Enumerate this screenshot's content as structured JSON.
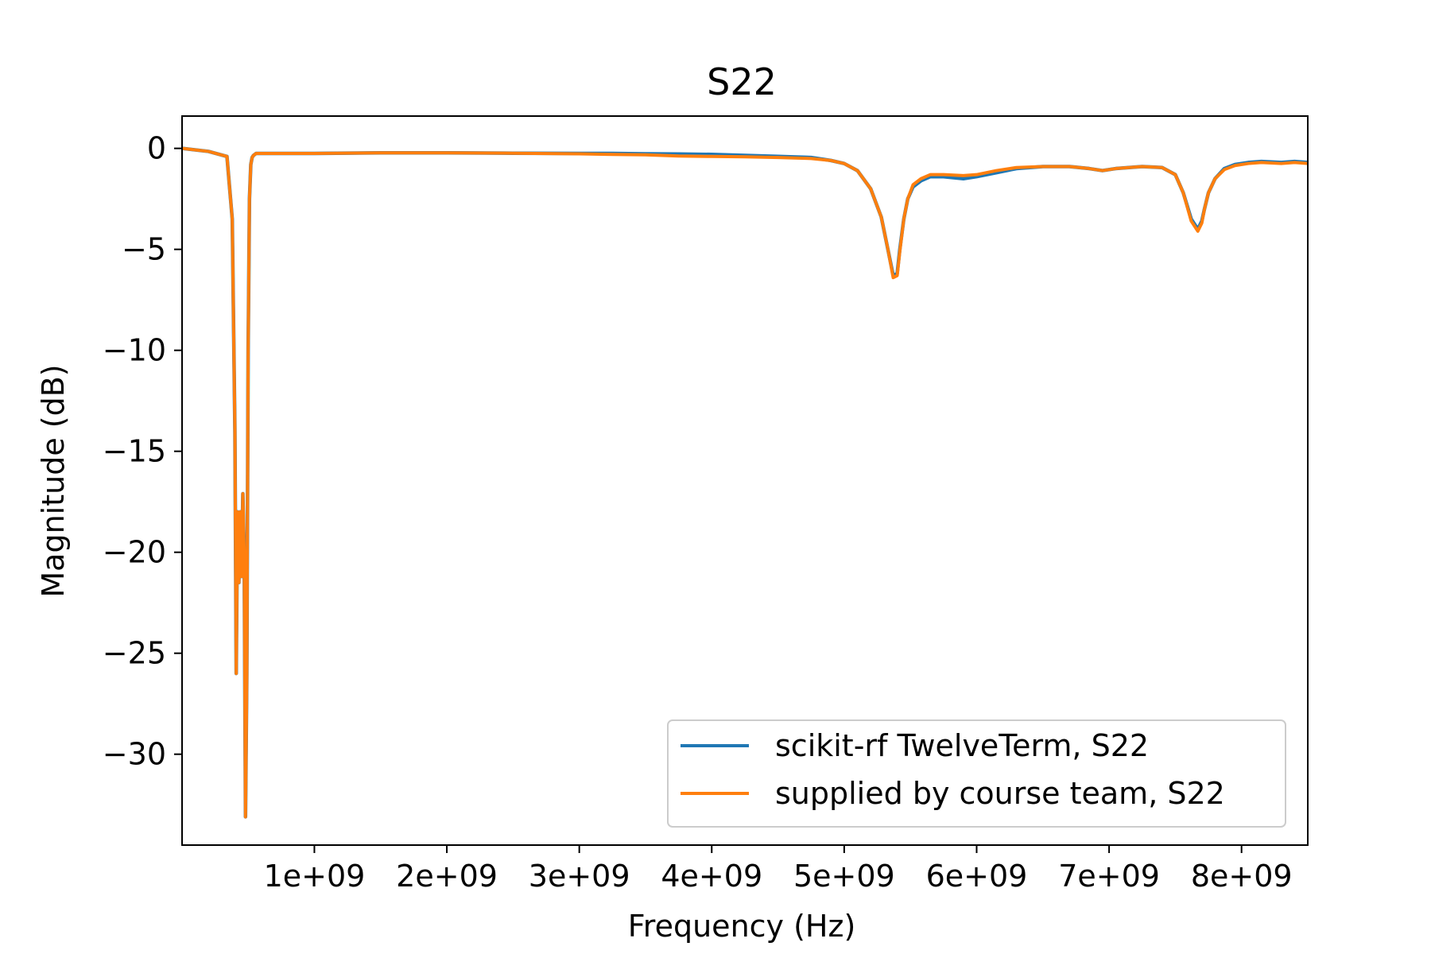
{
  "chart_data": {
    "type": "line",
    "title": "S22",
    "xlabel": "Frequency (Hz)",
    "ylabel": "Magnitude (dB)",
    "xlim": [
      1000000,
      8500000000
    ],
    "ylim": [
      -34.5,
      1.6
    ],
    "x_ticks": [
      {
        "value": 1000000000,
        "label": "1e+09"
      },
      {
        "value": 2000000000,
        "label": "2e+09"
      },
      {
        "value": 3000000000,
        "label": "3e+09"
      },
      {
        "value": 4000000000,
        "label": "4e+09"
      },
      {
        "value": 5000000000,
        "label": "5e+09"
      },
      {
        "value": 6000000000,
        "label": "6e+09"
      },
      {
        "value": 7000000000,
        "label": "7e+09"
      },
      {
        "value": 8000000000,
        "label": "8e+09"
      }
    ],
    "y_ticks": [
      {
        "value": 0,
        "label": "0"
      },
      {
        "value": -5,
        "label": "−5"
      },
      {
        "value": -10,
        "label": "−10"
      },
      {
        "value": -15,
        "label": "−15"
      },
      {
        "value": -20,
        "label": "−20"
      },
      {
        "value": -25,
        "label": "−25"
      },
      {
        "value": -30,
        "label": "−30"
      }
    ],
    "grid": false,
    "legend_position": "lower-right",
    "series": [
      {
        "name": "scikit-rf TwelveTerm, S22",
        "color": "#1f77b4",
        "x": [
          1000000,
          200000000,
          340000000,
          380000000,
          400000000,
          410000000,
          420000000,
          430000000,
          440000000,
          450000000,
          460000000,
          470000000,
          480000000,
          490000000,
          500000000,
          510000000,
          520000000,
          530000000,
          540000000,
          550000000,
          560000000,
          570000000,
          580000000,
          600000000,
          620000000,
          680000000,
          800000000,
          1000000000,
          1500000000,
          2000000000,
          2500000000,
          3000000000,
          3250000000,
          3500000000,
          3750000000,
          4000000000,
          4250000000,
          4500000000,
          4750000000,
          4900000000,
          5000000000,
          5100000000,
          5200000000,
          5280000000,
          5330000000,
          5370000000,
          5400000000,
          5420000000,
          5450000000,
          5480000000,
          5520000000,
          5580000000,
          5650000000,
          5750000000,
          5900000000,
          6000000000,
          6150000000,
          6300000000,
          6500000000,
          6700000000,
          6850000000,
          6950000000,
          7050000000,
          7250000000,
          7400000000,
          7500000000,
          7560000000,
          7620000000,
          7670000000,
          7700000000,
          7720000000,
          7750000000,
          7800000000,
          7870000000,
          7950000000,
          8050000000,
          8150000000,
          8300000000,
          8400000000,
          8500000000
        ],
        "y": [
          0,
          -0.15,
          -0.4,
          -3.5,
          -14,
          -26,
          -18,
          -21.5,
          -18,
          -21.2,
          -17.1,
          -20,
          -33.1,
          -26,
          -10,
          -2.5,
          -0.8,
          -0.45,
          -0.35,
          -0.3,
          -0.25,
          -0.25,
          -0.25,
          -0.25,
          -0.25,
          -0.25,
          -0.25,
          -0.25,
          -0.22,
          -0.22,
          -0.24,
          -0.25,
          -0.25,
          -0.27,
          -0.28,
          -0.3,
          -0.35,
          -0.4,
          -0.45,
          -0.6,
          -0.75,
          -1.1,
          -2.0,
          -3.4,
          -5.0,
          -6.3,
          -6.2,
          -5.0,
          -3.5,
          -2.5,
          -1.9,
          -1.6,
          -1.4,
          -1.4,
          -1.5,
          -1.4,
          -1.2,
          -1.0,
          -0.9,
          -0.9,
          -1.0,
          -1.1,
          -1.0,
          -0.9,
          -0.95,
          -1.3,
          -2.2,
          -3.5,
          -4.0,
          -3.6,
          -3.0,
          -2.2,
          -1.5,
          -1.0,
          -0.8,
          -0.7,
          -0.65,
          -0.7,
          -0.65,
          -0.7
        ]
      },
      {
        "name": "supplied by course team, S22",
        "color": "#ff7f0e",
        "x": [
          1000000,
          200000000,
          340000000,
          380000000,
          400000000,
          410000000,
          420000000,
          430000000,
          440000000,
          450000000,
          460000000,
          470000000,
          480000000,
          490000000,
          500000000,
          510000000,
          520000000,
          530000000,
          540000000,
          550000000,
          560000000,
          570000000,
          580000000,
          600000000,
          620000000,
          680000000,
          800000000,
          1000000000,
          1500000000,
          2000000000,
          2500000000,
          3000000000,
          3250000000,
          3500000000,
          3750000000,
          4000000000,
          4250000000,
          4500000000,
          4750000000,
          4900000000,
          5000000000,
          5100000000,
          5200000000,
          5280000000,
          5330000000,
          5370000000,
          5400000000,
          5420000000,
          5450000000,
          5480000000,
          5520000000,
          5580000000,
          5650000000,
          5750000000,
          5900000000,
          6000000000,
          6150000000,
          6300000000,
          6500000000,
          6700000000,
          6850000000,
          6950000000,
          7050000000,
          7250000000,
          7400000000,
          7500000000,
          7560000000,
          7620000000,
          7670000000,
          7700000000,
          7720000000,
          7750000000,
          7800000000,
          7870000000,
          7950000000,
          8050000000,
          8150000000,
          8300000000,
          8400000000,
          8500000000
        ],
        "y": [
          0,
          -0.15,
          -0.4,
          -3.5,
          -14,
          -26,
          -18,
          -21.5,
          -18,
          -21.2,
          -17.1,
          -20,
          -33.1,
          -26,
          -10,
          -2.5,
          -0.8,
          -0.45,
          -0.35,
          -0.3,
          -0.25,
          -0.25,
          -0.25,
          -0.25,
          -0.25,
          -0.25,
          -0.25,
          -0.25,
          -0.22,
          -0.22,
          -0.24,
          -0.27,
          -0.3,
          -0.32,
          -0.38,
          -0.4,
          -0.42,
          -0.45,
          -0.5,
          -0.6,
          -0.75,
          -1.1,
          -2.0,
          -3.4,
          -5.0,
          -6.4,
          -6.3,
          -5.1,
          -3.5,
          -2.5,
          -1.8,
          -1.5,
          -1.3,
          -1.3,
          -1.35,
          -1.3,
          -1.1,
          -0.95,
          -0.9,
          -0.9,
          -1.0,
          -1.1,
          -1.0,
          -0.9,
          -0.95,
          -1.3,
          -2.2,
          -3.6,
          -4.1,
          -3.7,
          -3.0,
          -2.2,
          -1.5,
          -1.05,
          -0.85,
          -0.75,
          -0.7,
          -0.75,
          -0.7,
          -0.75
        ]
      }
    ]
  }
}
